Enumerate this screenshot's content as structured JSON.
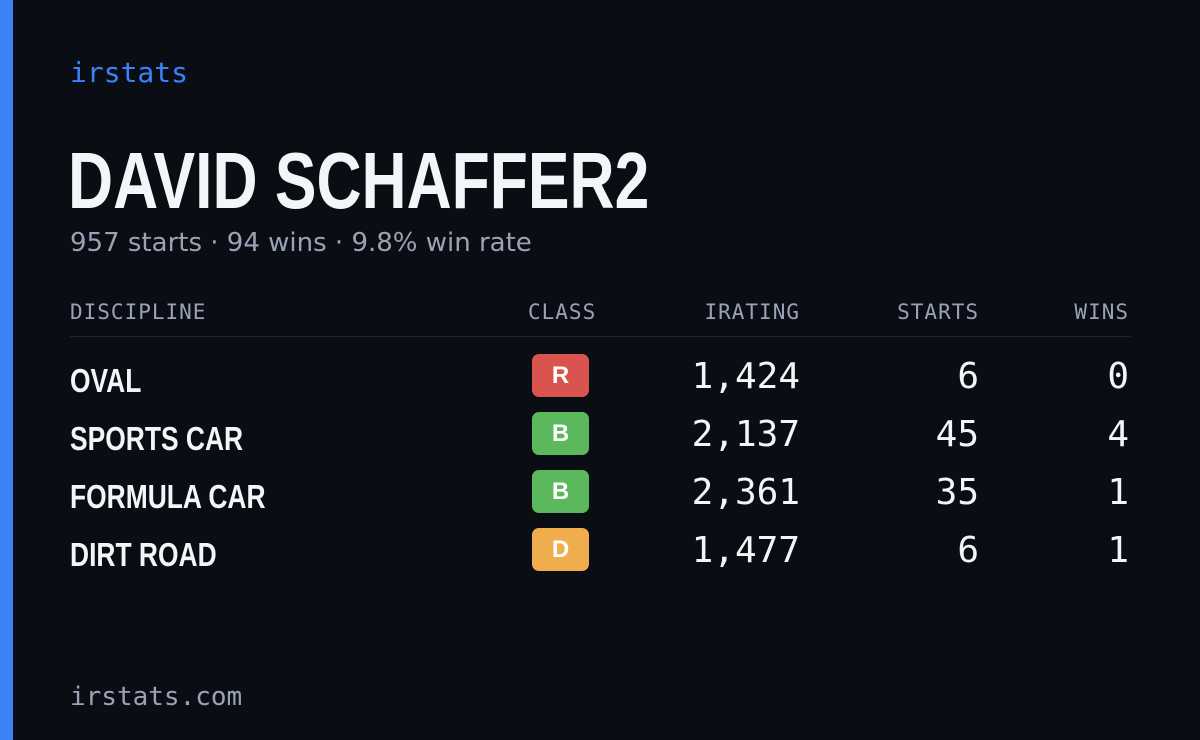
{
  "brand": "irstats",
  "driver": {
    "name": "DAVID SCHAFFER2",
    "summary": "957 starts · 94 wins · 9.8% win rate"
  },
  "table": {
    "headers": {
      "discipline": "DISCIPLINE",
      "class": "CLASS",
      "irating": "IRATING",
      "starts": "STARTS",
      "wins": "WINS"
    },
    "rows": [
      {
        "discipline": "OVAL",
        "class": "R",
        "class_color": "#d9534f",
        "irating": "1,424",
        "starts": "6",
        "wins": "0"
      },
      {
        "discipline": "SPORTS CAR",
        "class": "B",
        "class_color": "#5cb85c",
        "irating": "2,137",
        "starts": "45",
        "wins": "4"
      },
      {
        "discipline": "FORMULA CAR",
        "class": "B",
        "class_color": "#5cb85c",
        "irating": "2,361",
        "starts": "35",
        "wins": "1"
      },
      {
        "discipline": "DIRT ROAD",
        "class": "D",
        "class_color": "#f0ad4e",
        "irating": "1,477",
        "starts": "6",
        "wins": "1"
      }
    ]
  },
  "footer": "irstats.com",
  "colors": {
    "background": "#0b0d14",
    "accent": "#3b82f6",
    "text": "#f4f5f8",
    "muted": "#9aa3b5"
  }
}
